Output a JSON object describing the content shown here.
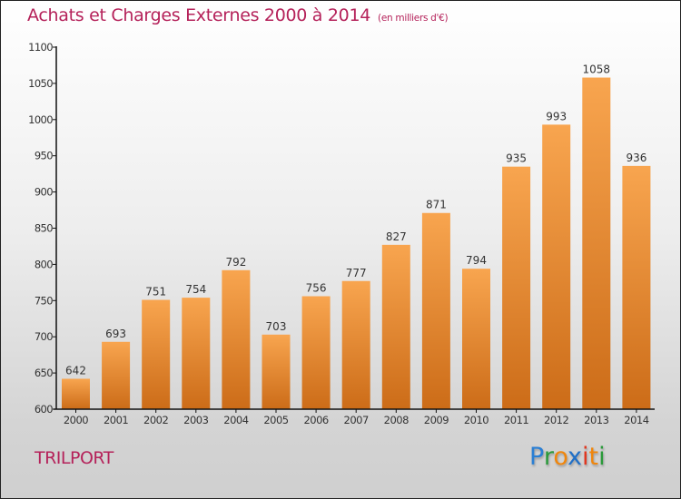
{
  "header": {
    "title": "Achats et Charges Externes 2000 à 2014",
    "unit": "(en milliers d'€)"
  },
  "footer": {
    "city": "TRILPORT",
    "logo_letters": [
      {
        "ch": "P",
        "color": "#2a7fd4"
      },
      {
        "ch": "r",
        "color": "#2a9a3a"
      },
      {
        "ch": "o",
        "color": "#f0860c"
      },
      {
        "ch": "x",
        "color": "#1f6fc7"
      },
      {
        "ch": "i",
        "color": "#e2361f"
      },
      {
        "ch": "t",
        "color": "#f0860c"
      },
      {
        "ch": "i",
        "color": "#2a9a3a"
      }
    ]
  },
  "colors": {
    "title": "#b5225a",
    "bar_top": "#f8a54f",
    "bar_bottom": "#cc6c18",
    "axis": "#111111",
    "label": "#333333"
  },
  "chart_data": {
    "type": "bar",
    "title": "Achats et Charges Externes 2000 à 2014",
    "subtitle": "(en milliers d'€)",
    "xlabel": "",
    "ylabel": "",
    "categories": [
      "2000",
      "2001",
      "2002",
      "2003",
      "2004",
      "2005",
      "2006",
      "2007",
      "2008",
      "2009",
      "2010",
      "2011",
      "2012",
      "2013",
      "2014"
    ],
    "values": [
      642,
      693,
      751,
      754,
      792,
      703,
      756,
      777,
      827,
      871,
      794,
      935,
      993,
      1058,
      936
    ],
    "ylim": [
      600,
      1100
    ],
    "yticks": [
      600,
      650,
      700,
      750,
      800,
      850,
      900,
      950,
      1000,
      1050,
      1100
    ],
    "grid": false,
    "legend": "none",
    "data_labels": true
  }
}
